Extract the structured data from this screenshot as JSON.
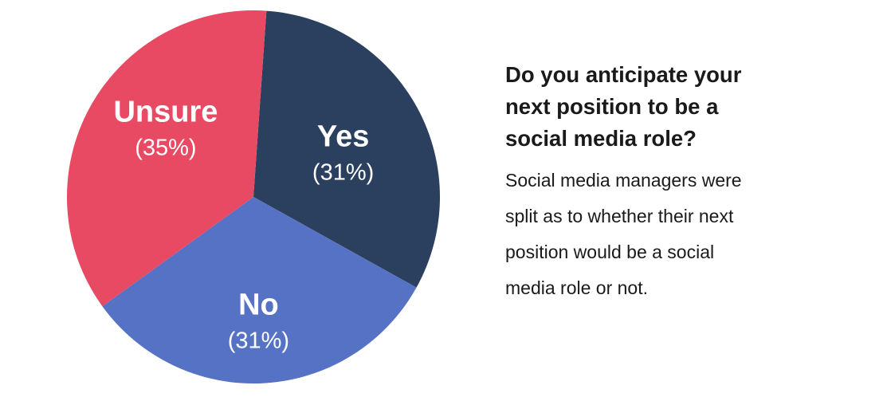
{
  "chart_data": {
    "type": "pie",
    "slices": [
      {
        "label": "Yes",
        "value": 31,
        "value_text": "(31%)",
        "color": "#2b405e"
      },
      {
        "label": "No",
        "value": 31,
        "value_text": "(31%)",
        "color": "#5672c4"
      },
      {
        "label": "Unsure",
        "value": 35,
        "value_text": "(35%)",
        "color": "#e84a63"
      }
    ],
    "legend": "none",
    "labels_on_slices": true
  },
  "panel": {
    "question": "Do you anticipate your\nnext position to be a\nsocial media role?",
    "description": "Social media managers were\nsplit as to whether their next\nposition would be a social\nmedia role or not."
  }
}
